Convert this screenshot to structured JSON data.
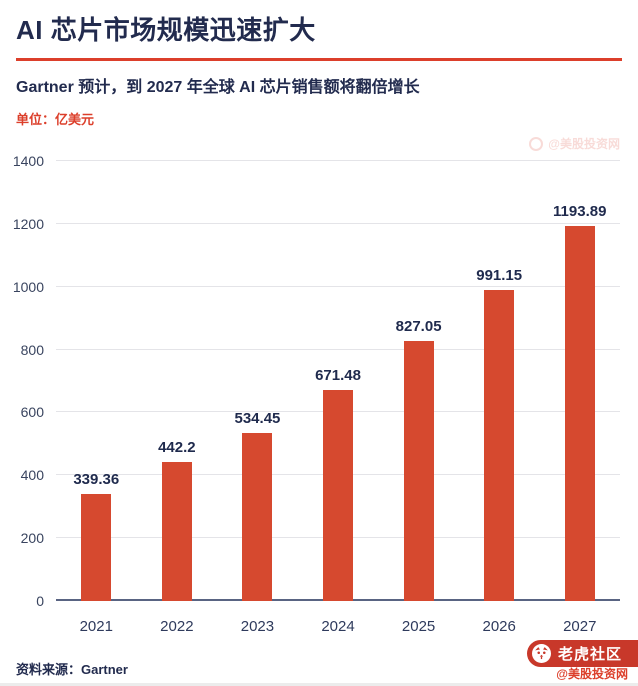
{
  "header": {
    "title": "AI 芯片市场规模迅速扩大",
    "subtitle": "Gartner 预计，到 2027 年全球 AI 芯片销售额将翻倍增长",
    "unit_label": "单位：亿美元"
  },
  "chart_data": {
    "type": "bar",
    "title": "AI 芯片市场规模迅速扩大",
    "xlabel": "",
    "ylabel": "单位：亿美元",
    "categories": [
      "2021",
      "2022",
      "2023",
      "2024",
      "2025",
      "2026",
      "2027"
    ],
    "values": [
      339.36,
      442.2,
      534.45,
      671.48,
      827.05,
      991.15,
      1193.89
    ],
    "value_labels": [
      "339.36",
      "442.2",
      "534.45",
      "671.48",
      "827.05",
      "991.15",
      "1193.89"
    ],
    "ylim": [
      0,
      1400
    ],
    "yticks": [
      0,
      200,
      400,
      600,
      800,
      1000,
      1200,
      1400
    ],
    "grid": true,
    "legend_position": "none",
    "bar_color": "#d6492f",
    "label_color": "#1f2a4d"
  },
  "watermark": {
    "text": "@美股投资网"
  },
  "footer": {
    "source": "资料来源：Gartner",
    "brand": "老虎社区",
    "handle": "@美股投资网"
  },
  "colors": {
    "accent_red": "#dc3f2b",
    "navy": "#222b4e",
    "badge_red": "#c8382a"
  }
}
